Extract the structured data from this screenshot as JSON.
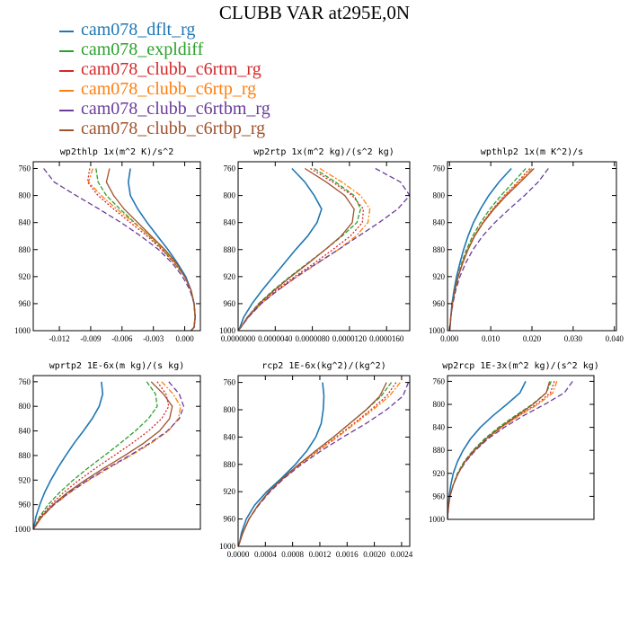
{
  "page": {
    "title": "CLUBB VAR at295E,0N"
  },
  "series": [
    {
      "name": "cam078_dflt_rg",
      "color": "#1f77b4"
    },
    {
      "name": "cam078_expldiff",
      "color": "#2ca02c"
    },
    {
      "name": "cam078_clubb_c6rtm_rg",
      "color": "#d62728"
    },
    {
      "name": "cam078_clubb_c6rtp_rg",
      "color": "#ff7f0e"
    },
    {
      "name": "cam078_clubb_c6rtbm_rg",
      "color": "#6a3d9a"
    },
    {
      "name": "cam078_clubb_c6rtbp_rg",
      "color": "#a0522d"
    }
  ],
  "chart_data": [
    {
      "type": "line",
      "title": "wp2thlp  1x(m^2 K)/s^2",
      "ylim": [
        1000,
        750
      ],
      "yticks": [
        "760",
        "800",
        "840",
        "880",
        "920",
        "960",
        "1000"
      ],
      "xlim": [
        -0.0145,
        0.0015
      ],
      "xticks": [
        "-0.012",
        "-0.009",
        "-0.006",
        "-0.003",
        "0.000"
      ],
      "y": [
        760,
        780,
        800,
        820,
        840,
        860,
        880,
        900,
        920,
        940,
        960,
        980,
        995,
        1000
      ],
      "series": [
        {
          "values": [
            -0.0052,
            -0.0054,
            -0.0052,
            -0.0045,
            -0.0036,
            -0.0026,
            -0.0016,
            -0.0007,
            0.0001,
            0.0006,
            0.0009,
            0.001,
            0.0009,
            0.0006
          ]
        },
        {
          "values": [
            -0.0085,
            -0.0083,
            -0.0075,
            -0.0062,
            -0.0048,
            -0.0034,
            -0.0021,
            -0.001,
            0.0,
            0.0006,
            0.0009,
            0.001,
            0.0009,
            0.0006
          ]
        },
        {
          "values": [
            -0.0091,
            -0.0093,
            -0.0083,
            -0.0068,
            -0.0052,
            -0.0036,
            -0.0022,
            -0.001,
            0.0,
            0.0006,
            0.0009,
            0.001,
            0.0009,
            0.0006
          ]
        },
        {
          "values": [
            -0.0088,
            -0.0092,
            -0.008,
            -0.0065,
            -0.0049,
            -0.0033,
            -0.002,
            -0.0009,
            0.0,
            0.0006,
            0.0009,
            0.001,
            0.0009,
            0.0006
          ]
        },
        {
          "values": [
            -0.0135,
            -0.0125,
            -0.0104,
            -0.0082,
            -0.0061,
            -0.0042,
            -0.0025,
            -0.0012,
            -0.0002,
            0.0005,
            0.0009,
            0.001,
            0.0009,
            0.0006
          ]
        },
        {
          "values": [
            -0.0072,
            -0.0075,
            -0.0068,
            -0.0058,
            -0.0045,
            -0.0032,
            -0.0019,
            -0.0008,
            0.0,
            0.0006,
            0.0009,
            0.001,
            0.0009,
            0.0006
          ]
        }
      ]
    },
    {
      "type": "line",
      "title": "wp2rtp  1x(m^2 kg)/(s^2 kg)",
      "ylim": [
        1000,
        750
      ],
      "yticks": [
        "760",
        "800",
        "840",
        "880",
        "920",
        "960",
        "1000"
      ],
      "xlim": [
        0.0,
        1.85e-05
      ],
      "xticks": [
        "0.0000000",
        "0.0000040",
        "0.0000080",
        "0.0000120",
        "0.0000160"
      ],
      "y": [
        760,
        780,
        800,
        820,
        840,
        860,
        880,
        900,
        920,
        940,
        960,
        980,
        995,
        1000
      ],
      "series": [
        {
          "values": [
            5.8e-06,
            7.2e-06,
            8.2e-06,
            9e-06,
            8.5e-06,
            7.5e-06,
            6.2e-06,
            5e-06,
            3.8e-06,
            2.6e-06,
            1.5e-06,
            6e-07,
            2e-07,
            0.0
          ]
        },
        {
          "values": [
            8.2e-06,
            1.05e-05,
            1.25e-05,
            1.32e-05,
            1.28e-05,
            1.12e-05,
            9.4e-06,
            7.5e-06,
            5.6e-06,
            3.8e-06,
            2.2e-06,
            1e-06,
            3e-07,
            0.0
          ]
        },
        {
          "values": [
            7.8e-06,
            1.02e-05,
            1.23e-05,
            1.35e-05,
            1.34e-05,
            1.21e-05,
            1.02e-05,
            8.2e-06,
            6.1e-06,
            4.1e-06,
            2.4e-06,
            1.1e-06,
            3e-07,
            0.0
          ]
        },
        {
          "values": [
            8.8e-06,
            1.12e-05,
            1.32e-05,
            1.42e-05,
            1.4e-05,
            1.27e-05,
            1.08e-05,
            8.6e-06,
            6.4e-06,
            4.3e-06,
            2.5e-06,
            1.1e-06,
            3e-07,
            0.0
          ]
        },
        {
          "values": [
            1.48e-05,
            1.75e-05,
            1.85e-05,
            1.72e-05,
            1.52e-05,
            1.3e-05,
            1.08e-05,
            8.5e-06,
            6.3e-06,
            4.3e-06,
            2.5e-06,
            1.1e-06,
            3e-07,
            0.0
          ]
        },
        {
          "values": [
            7.2e-06,
            9.5e-06,
            1.15e-05,
            1.25e-05,
            1.23e-05,
            1.11e-05,
            9.4e-06,
            7.6e-06,
            5.7e-06,
            3.9e-06,
            2.3e-06,
            1e-06,
            3e-07,
            0.0
          ]
        }
      ]
    },
    {
      "type": "line",
      "title": "wpthlp2  1x(m K^2)/s",
      "ylim": [
        1000,
        750
      ],
      "yticks": [
        "760",
        "800",
        "840",
        "880",
        "920",
        "960",
        "1000"
      ],
      "xlim": [
        -0.0005,
        0.0405
      ],
      "xticks": [
        "0.000",
        "0.010",
        "0.020",
        "0.030",
        "0.040"
      ],
      "y": [
        760,
        780,
        800,
        820,
        840,
        860,
        880,
        900,
        920,
        940,
        960,
        980,
        995,
        1000
      ],
      "series": [
        {
          "values": [
            0.015,
            0.012,
            0.0095,
            0.0075,
            0.0058,
            0.0045,
            0.0034,
            0.0025,
            0.0017,
            0.0011,
            0.0006,
            0.0003,
            0.0001,
            0.0
          ]
        },
        {
          "values": [
            0.0185,
            0.0155,
            0.0125,
            0.0098,
            0.0075,
            0.0056,
            0.0041,
            0.0029,
            0.002,
            0.0012,
            0.0007,
            0.0003,
            0.0001,
            0.0
          ]
        },
        {
          "values": [
            0.0195,
            0.0165,
            0.0133,
            0.0105,
            0.008,
            0.006,
            0.0044,
            0.0031,
            0.0021,
            0.0013,
            0.0007,
            0.0003,
            0.0001,
            0.0
          ]
        },
        {
          "values": [
            0.02,
            0.0168,
            0.0135,
            0.0106,
            0.0081,
            0.006,
            0.0044,
            0.0031,
            0.0021,
            0.0013,
            0.0007,
            0.0003,
            0.0001,
            0.0
          ]
        },
        {
          "values": [
            0.024,
            0.0215,
            0.0182,
            0.0145,
            0.011,
            0.008,
            0.0057,
            0.0039,
            0.0025,
            0.0015,
            0.0008,
            0.0003,
            0.0001,
            0.0
          ]
        },
        {
          "values": [
            0.0205,
            0.0172,
            0.0138,
            0.0108,
            0.0082,
            0.0061,
            0.0045,
            0.0032,
            0.0021,
            0.0013,
            0.0007,
            0.0003,
            0.0001,
            0.0
          ]
        }
      ]
    },
    {
      "type": "line",
      "title": "wprtp2  1E-6x(m kg)/(s kg)",
      "ylim": [
        1000,
        750
      ],
      "yticks": [
        "760",
        "800",
        "840",
        "880",
        "920",
        "960",
        "1000"
      ],
      "xlim": [
        0.0,
        3.8e-07
      ],
      "xticks": [],
      "y": [
        760,
        780,
        800,
        820,
        840,
        860,
        880,
        900,
        920,
        940,
        960,
        980,
        995,
        1000
      ],
      "series": [
        {
          "values": [
            1.55e-07,
            1.58e-07,
            1.5e-07,
            1.34e-07,
            1.14e-07,
            9.3e-08,
            7.4e-08,
            5.6e-08,
            4e-08,
            2.6e-08,
            1.5e-08,
            6e-09,
            2e-09,
            0.0
          ]
        },
        {
          "values": [
            2.58e-07,
            2.78e-07,
            2.82e-07,
            2.62e-07,
            2.32e-07,
            1.98e-07,
            1.62e-07,
            1.25e-07,
            9.1e-08,
            6e-08,
            3.4e-08,
            1.4e-08,
            4e-09,
            0.0
          ]
        },
        {
          "values": [
            2.82e-07,
            3.02e-07,
            3.08e-07,
            2.92e-07,
            2.62e-07,
            2.25e-07,
            1.84e-07,
            1.43e-07,
            1.04e-07,
            6.9e-08,
            4e-08,
            1.6e-08,
            4e-09,
            0.0
          ]
        },
        {
          "values": [
            2.92e-07,
            3.18e-07,
            3.35e-07,
            3.3e-07,
            3.07e-07,
            2.68e-07,
            2.22e-07,
            1.73e-07,
            1.26e-07,
            8.4e-08,
            4.8e-08,
            2e-08,
            5e-09,
            0.0
          ]
        },
        {
          "values": [
            3.08e-07,
            3.32e-07,
            3.42e-07,
            3.32e-07,
            3.05e-07,
            2.65e-07,
            2.19e-07,
            1.7e-07,
            1.24e-07,
            8.2e-08,
            4.7e-08,
            1.9e-08,
            5e-09,
            0.0
          ]
        },
        {
          "values": [
            2.68e-07,
            2.96e-07,
            3.16e-07,
            3.1e-07,
            2.87e-07,
            2.51e-07,
            2.08e-07,
            1.62e-07,
            1.18e-07,
            7.8e-08,
            4.5e-08,
            1.8e-08,
            5e-09,
            0.0
          ]
        }
      ]
    },
    {
      "type": "line",
      "title": "rcp2  1E-6x(kg^2)/(kg^2)",
      "ylim": [
        1000,
        750
      ],
      "yticks": [
        "760",
        "800",
        "840",
        "880",
        "920",
        "960",
        "1000"
      ],
      "xlim": [
        0.0,
        0.00252
      ],
      "xticks": [
        "0.0000",
        "0.0004",
        "0.0008",
        "0.0012",
        "0.0016",
        "0.0020",
        "0.0024"
      ],
      "y": [
        760,
        780,
        800,
        820,
        840,
        860,
        880,
        900,
        920,
        940,
        960,
        980,
        995,
        1000
      ],
      "series": [
        {
          "values": [
            0.00124,
            0.00126,
            0.00125,
            0.00122,
            0.00114,
            0.00101,
            0.00084,
            0.00064,
            0.00042,
            0.00024,
            0.00012,
            5e-05,
            2e-05,
            0.0
          ]
        },
        {
          "values": [
            0.00225,
            0.0021,
            0.00188,
            0.00164,
            0.0014,
            0.00114,
            0.00089,
            0.00066,
            0.00045,
            0.00029,
            0.00016,
            7e-05,
            2e-05,
            0.0
          ]
        },
        {
          "values": [
            0.00232,
            0.00218,
            0.00195,
            0.0017,
            0.00144,
            0.00117,
            0.00091,
            0.00067,
            0.00046,
            0.00029,
            0.00016,
            7e-05,
            2e-05,
            0.0
          ]
        },
        {
          "values": [
            0.00238,
            0.00222,
            0.00198,
            0.00172,
            0.00146,
            0.00118,
            0.00091,
            0.00067,
            0.00046,
            0.00029,
            0.00016,
            7e-05,
            2e-05,
            0.0
          ]
        },
        {
          "values": [
            0.0025,
            0.00242,
            0.00218,
            0.00188,
            0.00154,
            0.00122,
            0.00093,
            0.00068,
            0.00047,
            0.0003,
            0.00016,
            7e-05,
            2e-05,
            0.0
          ]
        },
        {
          "values": [
            0.00218,
            0.00208,
            0.00188,
            0.00164,
            0.0014,
            0.00114,
            0.00089,
            0.00066,
            0.00045,
            0.00029,
            0.00016,
            7e-05,
            2e-05,
            0.0
          ]
        }
      ]
    },
    {
      "type": "line",
      "title": "wp2rcp  1E-3x(m^2 kg)/(s^2 kg)",
      "ylim": [
        1000,
        750
      ],
      "yticks": [
        "760",
        "800",
        "840",
        "880",
        "920",
        "960",
        "1000"
      ],
      "xlim": [
        0.0,
        1.78e-08
      ],
      "xticks": [],
      "y": [
        760,
        780,
        800,
        820,
        840,
        860,
        880,
        900,
        920,
        940,
        960,
        980,
        995,
        1000
      ],
      "series": [
        {
          "values": [
            9.5e-09,
            8.8e-09,
            7.2e-09,
            5.5e-09,
            4e-09,
            2.8e-09,
            1.9e-09,
            1.2e-09,
            7e-10,
            4e-10,
            2e-10,
            1e-10,
            0.0,
            0.0
          ]
        },
        {
          "values": [
            1.26e-08,
            1.2e-08,
            1.03e-08,
            8.2e-09,
            6.2e-09,
            4.5e-09,
            3.1e-09,
            2e-09,
            1.2e-09,
            7e-10,
            3e-10,
            1e-10,
            0.0,
            0.0
          ]
        },
        {
          "values": [
            1.3e-08,
            1.25e-08,
            1.08e-08,
            8.6e-09,
            6.5e-09,
            4.7e-09,
            3.2e-09,
            2.1e-09,
            1.3e-09,
            7e-10,
            3e-10,
            1e-10,
            0.0,
            0.0
          ]
        },
        {
          "values": [
            1.33e-08,
            1.28e-08,
            1.1e-08,
            8.7e-09,
            6.6e-09,
            4.8e-09,
            3.3e-09,
            2.1e-09,
            1.3e-09,
            7e-10,
            3e-10,
            1e-10,
            0.0,
            0.0
          ]
        },
        {
          "values": [
            1.52e-08,
            1.42e-08,
            1.18e-08,
            9.2e-09,
            6.9e-09,
            4.9e-09,
            3.4e-09,
            2.2e-09,
            1.3e-09,
            7e-10,
            3e-10,
            1e-10,
            0.0,
            0.0
          ]
        },
        {
          "values": [
            1.24e-08,
            1.2e-08,
            1.04e-08,
            8.4e-09,
            6.4e-09,
            4.7e-09,
            3.3e-09,
            2.1e-09,
            1.3e-09,
            7e-10,
            3e-10,
            1e-10,
            0.0,
            0.0
          ]
        }
      ]
    }
  ]
}
